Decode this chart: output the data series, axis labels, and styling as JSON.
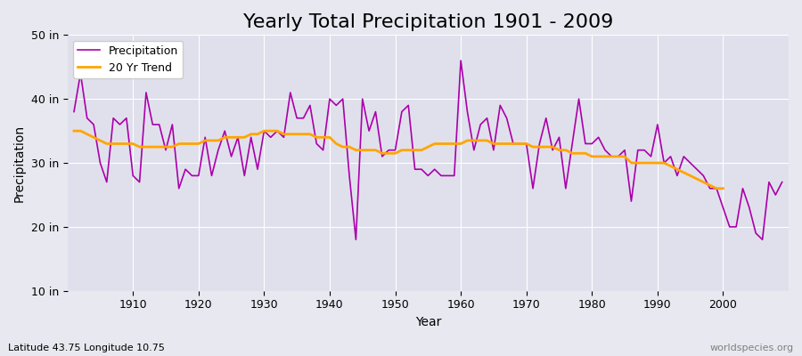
{
  "title": "Yearly Total Precipitation 1901 - 2009",
  "xlabel": "Year",
  "ylabel": "Precipitation",
  "subtitle": "Latitude 43.75 Longitude 10.75",
  "watermark": "worldspecies.org",
  "years": [
    1901,
    1902,
    1903,
    1904,
    1905,
    1906,
    1907,
    1908,
    1909,
    1910,
    1911,
    1912,
    1913,
    1914,
    1915,
    1916,
    1917,
    1918,
    1919,
    1920,
    1921,
    1922,
    1923,
    1924,
    1925,
    1926,
    1927,
    1928,
    1929,
    1930,
    1931,
    1932,
    1933,
    1934,
    1935,
    1936,
    1937,
    1938,
    1939,
    1940,
    1941,
    1942,
    1943,
    1944,
    1945,
    1946,
    1947,
    1948,
    1949,
    1950,
    1951,
    1952,
    1953,
    1954,
    1955,
    1956,
    1957,
    1958,
    1959,
    1960,
    1961,
    1962,
    1963,
    1964,
    1965,
    1966,
    1967,
    1968,
    1969,
    1970,
    1971,
    1972,
    1973,
    1974,
    1975,
    1976,
    1977,
    1978,
    1979,
    1980,
    1981,
    1982,
    1983,
    1984,
    1985,
    1986,
    1987,
    1988,
    1989,
    1990,
    1991,
    1992,
    1993,
    1994,
    1995,
    1996,
    1997,
    1998,
    1999,
    2000,
    2001,
    2002,
    2003,
    2004,
    2005,
    2006,
    2007,
    2008,
    2009
  ],
  "precipitation": [
    38,
    44,
    37,
    36,
    30,
    27,
    37,
    36,
    37,
    28,
    27,
    41,
    36,
    36,
    32,
    36,
    26,
    29,
    28,
    28,
    34,
    28,
    32,
    35,
    31,
    34,
    28,
    34,
    29,
    35,
    34,
    35,
    34,
    41,
    37,
    37,
    39,
    33,
    32,
    40,
    39,
    40,
    28,
    18,
    40,
    35,
    38,
    31,
    32,
    32,
    38,
    39,
    29,
    29,
    28,
    29,
    28,
    28,
    28,
    46,
    38,
    32,
    36,
    37,
    32,
    39,
    37,
    33,
    33,
    33,
    26,
    33,
    37,
    32,
    34,
    26,
    33,
    40,
    33,
    33,
    34,
    32,
    31,
    31,
    32,
    24,
    32,
    32,
    31,
    36,
    30,
    31,
    28,
    31,
    30,
    29,
    28,
    26,
    26,
    23,
    20,
    20,
    26,
    23,
    19,
    18,
    27,
    25,
    27
  ],
  "trend": [
    35,
    35,
    34.5,
    34,
    33.5,
    33,
    33,
    33,
    33,
    33,
    32.5,
    32.5,
    32.5,
    32.5,
    32.5,
    32.5,
    33,
    33,
    33,
    33,
    33.5,
    33.5,
    33.5,
    34,
    34,
    34,
    34,
    34.5,
    34.5,
    35,
    35,
    35,
    34.5,
    34.5,
    34.5,
    34.5,
    34.5,
    34,
    34,
    34,
    33,
    32.5,
    32.5,
    32,
    32,
    32,
    32,
    31.5,
    31.5,
    31.5,
    32,
    32,
    32,
    32,
    32.5,
    33,
    33,
    33,
    33,
    33,
    33.5,
    33.5,
    33.5,
    33.5,
    33,
    33,
    33,
    33,
    33,
    33,
    32.5,
    32.5,
    32.5,
    32.5,
    32,
    32,
    31.5,
    31.5,
    31.5,
    31,
    31,
    31,
    31,
    31,
    31,
    30,
    30,
    30,
    30,
    30,
    30,
    29.5,
    29,
    28.5,
    28,
    27.5,
    27,
    26.5,
    26,
    26,
    null,
    null,
    null,
    null,
    null,
    null,
    null,
    null,
    null
  ],
  "precip_color": "#AA00AA",
  "trend_color": "#FFA500",
  "bg_color": "#E8E8F0",
  "plot_bg_color": "#E0E0EC",
  "ylim": [
    10,
    50
  ],
  "yticks": [
    10,
    20,
    30,
    40,
    50
  ],
  "ytick_labels": [
    "10 in",
    "20 in",
    "30 in",
    "40 in",
    "50 in"
  ],
  "xticks": [
    1910,
    1920,
    1930,
    1940,
    1950,
    1960,
    1970,
    1980,
    1990,
    2000
  ],
  "title_fontsize": 16,
  "legend_fontsize": 9,
  "axis_label_fontsize": 10,
  "tick_fontsize": 9
}
